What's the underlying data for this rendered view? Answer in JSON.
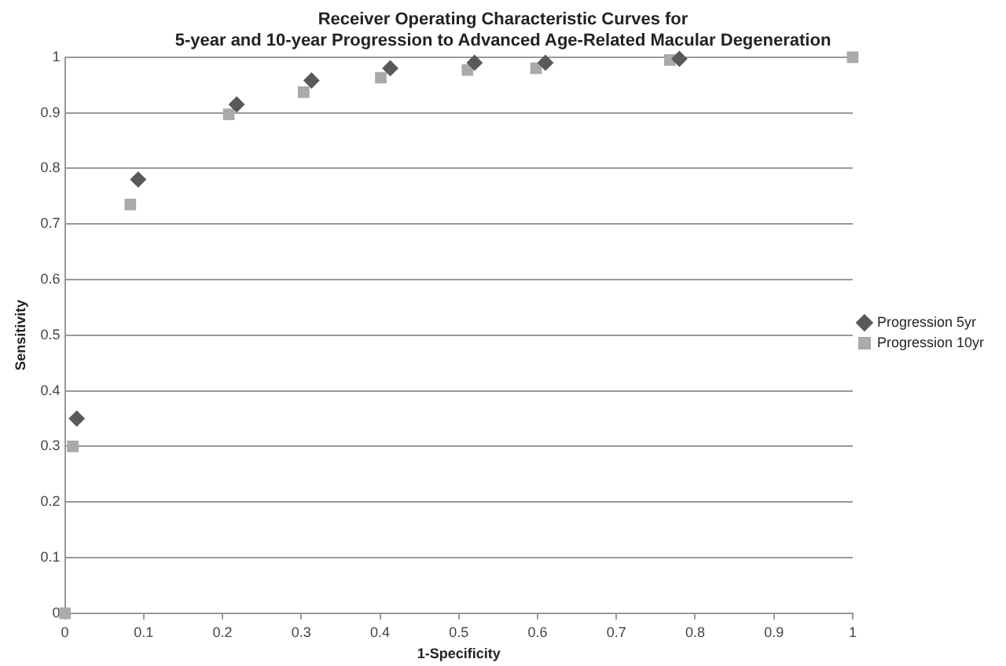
{
  "chart_data": {
    "type": "scatter",
    "title": "Receiver Operating Characteristic Curves for\n5-year and 10-year Progression to Advanced Age-Related Macular Degeneration",
    "xlabel": "1-Specificity",
    "ylabel": "Sensitivity",
    "xlim": [
      0,
      1
    ],
    "xticks": [
      0,
      0.1,
      0.2,
      0.3,
      0.4,
      0.5,
      0.6,
      0.7,
      0.8,
      0.9,
      1
    ],
    "ylim": [
      0,
      1
    ],
    "yticks": [
      0,
      0.1,
      0.2,
      0.3,
      0.4,
      0.5,
      0.6,
      0.7,
      0.8,
      0.9,
      1
    ],
    "grid": "y",
    "legend": "right",
    "series": [
      {
        "name": "Progression 5yr",
        "color": "#595959",
        "marker": "diamond",
        "x": [
          0.015,
          0.093,
          0.218,
          0.313,
          0.413,
          0.52,
          0.61,
          0.78
        ],
        "values": [
          0.35,
          0.78,
          0.915,
          0.958,
          0.98,
          0.99,
          0.99,
          0.997
        ]
      },
      {
        "name": "Progression 10yr",
        "color": "#aaaaaa",
        "marker": "square",
        "x": [
          0,
          0.01,
          0.083,
          0.208,
          0.303,
          0.401,
          0.511,
          0.598,
          0.768,
          1
        ],
        "values": [
          0,
          0.3,
          0.735,
          0.897,
          0.937,
          0.963,
          0.977,
          0.98,
          0.995,
          1
        ]
      }
    ]
  }
}
